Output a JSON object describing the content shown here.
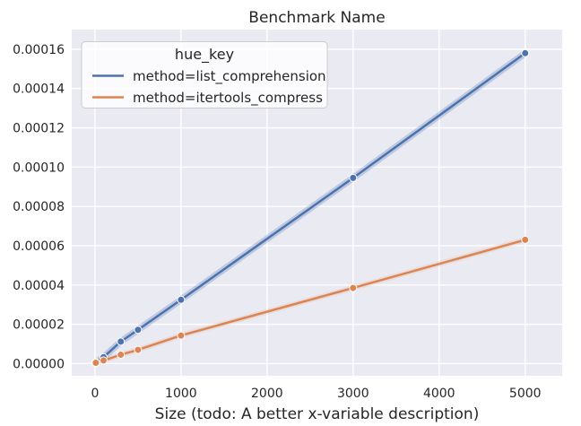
{
  "title": "Benchmark Name",
  "chart_data": {
    "type": "line",
    "title": "Benchmark Name",
    "xlabel": "Size (todo: A better x-variable description)",
    "ylabel": "",
    "legend": {
      "title": "hue_key",
      "position": "upper left"
    },
    "x": [
      1,
      10,
      100,
      300,
      500,
      1000,
      3000,
      5000
    ],
    "series": [
      {
        "name": "method=list_comprehension",
        "color": "#4c72b0",
        "values": [
          4e-07,
          7e-07,
          3.3e-06,
          1.12e-05,
          1.72e-05,
          3.25e-05,
          9.45e-05,
          0.000158
        ]
      },
      {
        "name": "method=itertools_compress",
        "color": "#dd8452",
        "values": [
          2e-07,
          4e-07,
          1.6e-06,
          4.5e-06,
          7e-06,
          1.43e-05,
          3.85e-05,
          6.3e-05
        ]
      }
    ],
    "xlim": [
      -270,
      5430
    ],
    "ylim": [
      -6.2e-06,
      0.00017
    ],
    "xticks": [
      0,
      1000,
      2000,
      3000,
      4000,
      5000
    ],
    "xtick_labels": [
      "0",
      "1000",
      "2000",
      "3000",
      "4000",
      "5000"
    ],
    "yticks": [
      0,
      2e-05,
      4e-05,
      6e-05,
      8e-05,
      0.0001,
      0.00012,
      0.00014,
      0.00016
    ],
    "ytick_labels": [
      "0.00000",
      "0.00002",
      "0.00004",
      "0.00006",
      "0.00008",
      "0.00010",
      "0.00012",
      "0.00014",
      "0.00016"
    ],
    "grid": true,
    "marker": "circle",
    "ci_band": true,
    "style": {
      "fig_bg": "#ffffff",
      "axes_bg": "#eaeaf2",
      "grid_color": "#ffffff",
      "text_color": "#262626",
      "legend_bg": "rgba(255,255,255,0.8)",
      "legend_border": "#cccccc"
    }
  }
}
